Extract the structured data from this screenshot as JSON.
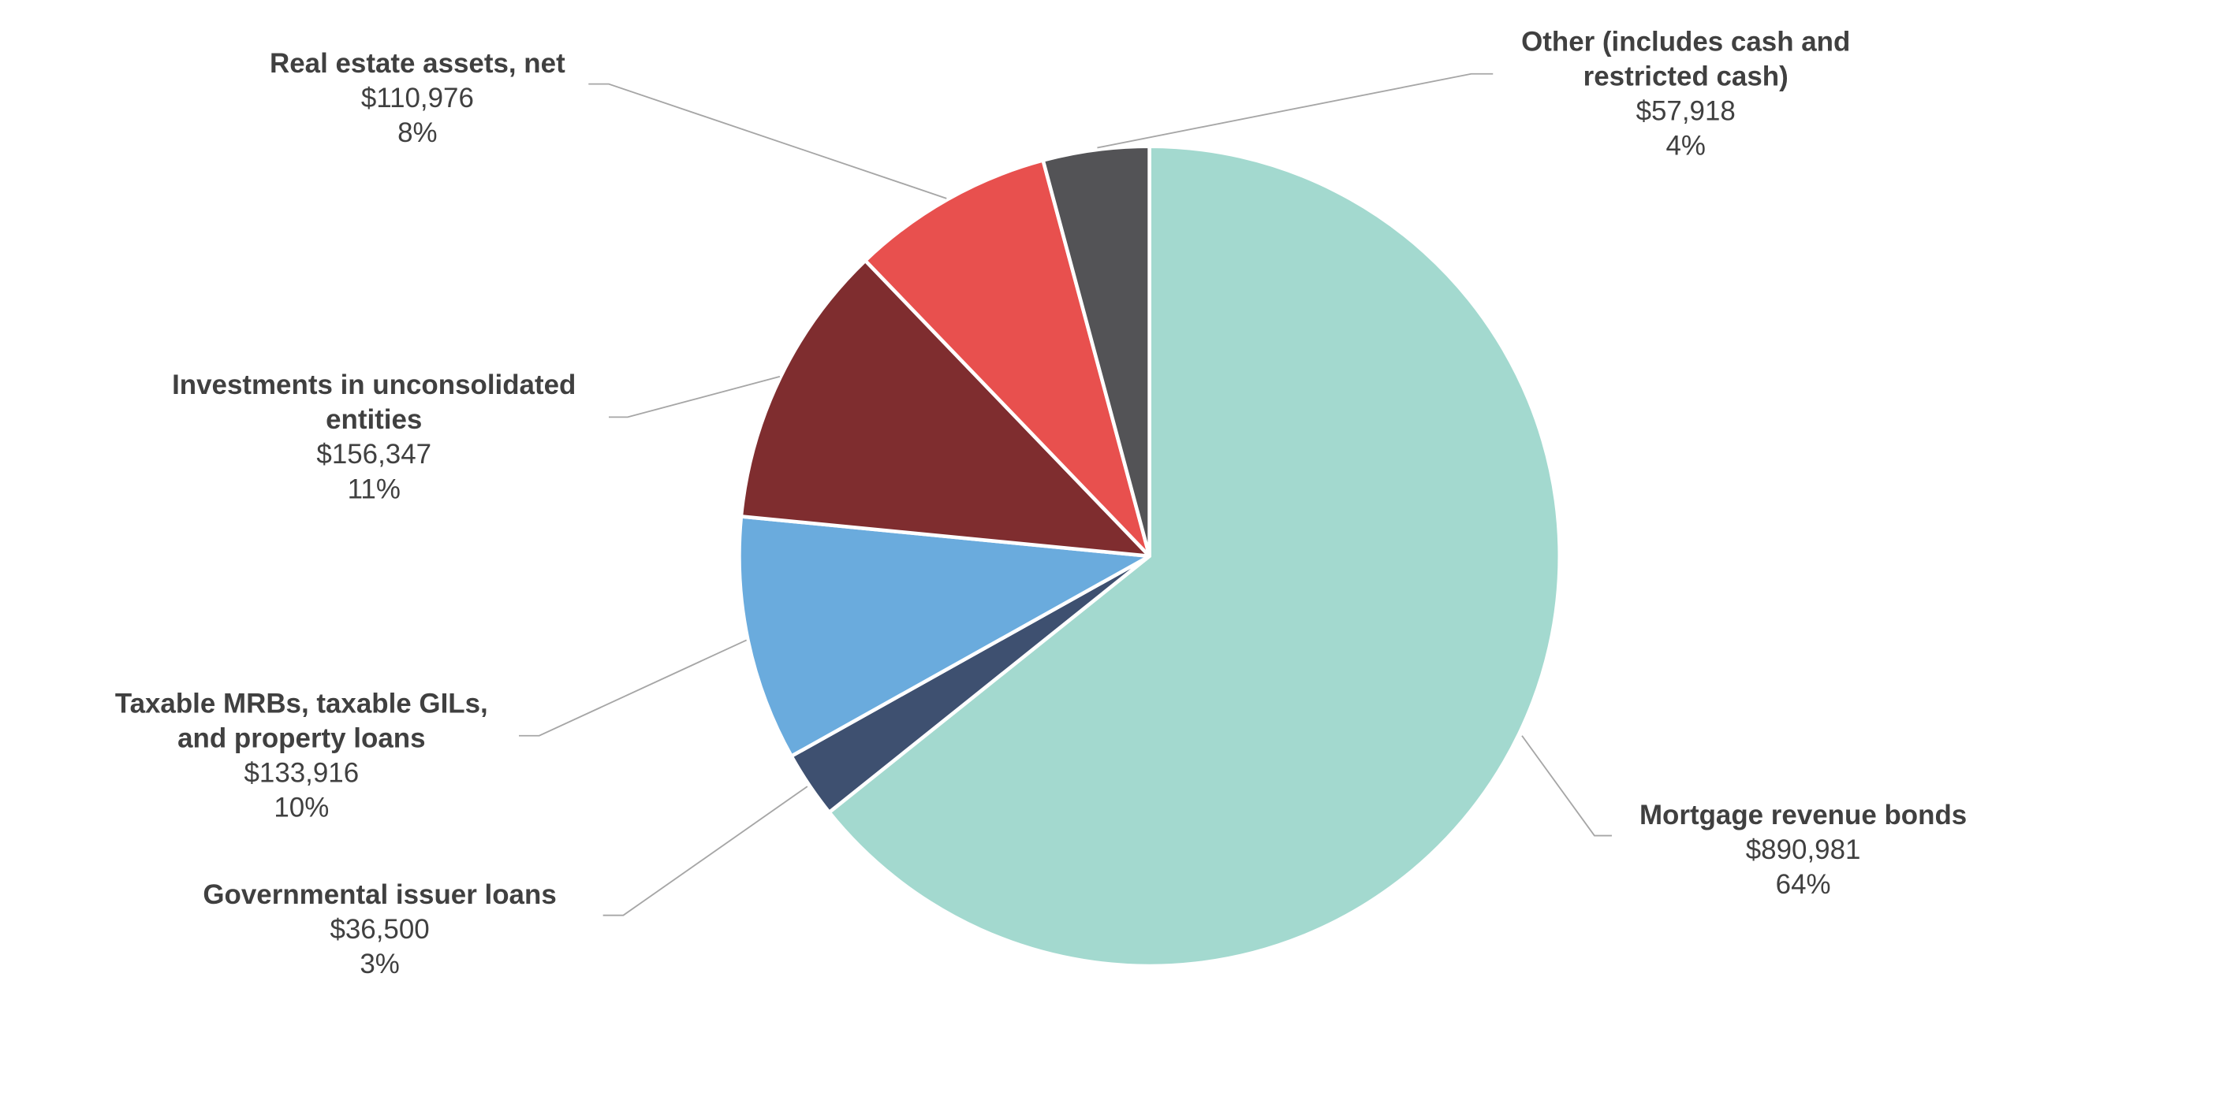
{
  "chart_data": {
    "type": "pie",
    "categories": [
      "Mortgage revenue bonds",
      "Governmental issuer loans",
      "Taxable MRBs, taxable GILs, and property loans",
      "Investments in unconsolidated entities",
      "Real estate assets, net",
      "Other (includes cash and restricted cash)"
    ],
    "values": [
      890981,
      36500,
      133916,
      156347,
      110976,
      57918
    ],
    "value_labels": [
      "$890,981",
      "$36,500",
      "$133,916",
      "$156,347",
      "$110,976",
      "$57,918"
    ],
    "percent_labels": [
      "64%",
      "3%",
      "10%",
      "11%",
      "8%",
      "4%"
    ],
    "colors": [
      "#a3d9cf",
      "#3e5070",
      "#6aabdd",
      "#7f2d2f",
      "#e8504e",
      "#535356"
    ]
  }
}
